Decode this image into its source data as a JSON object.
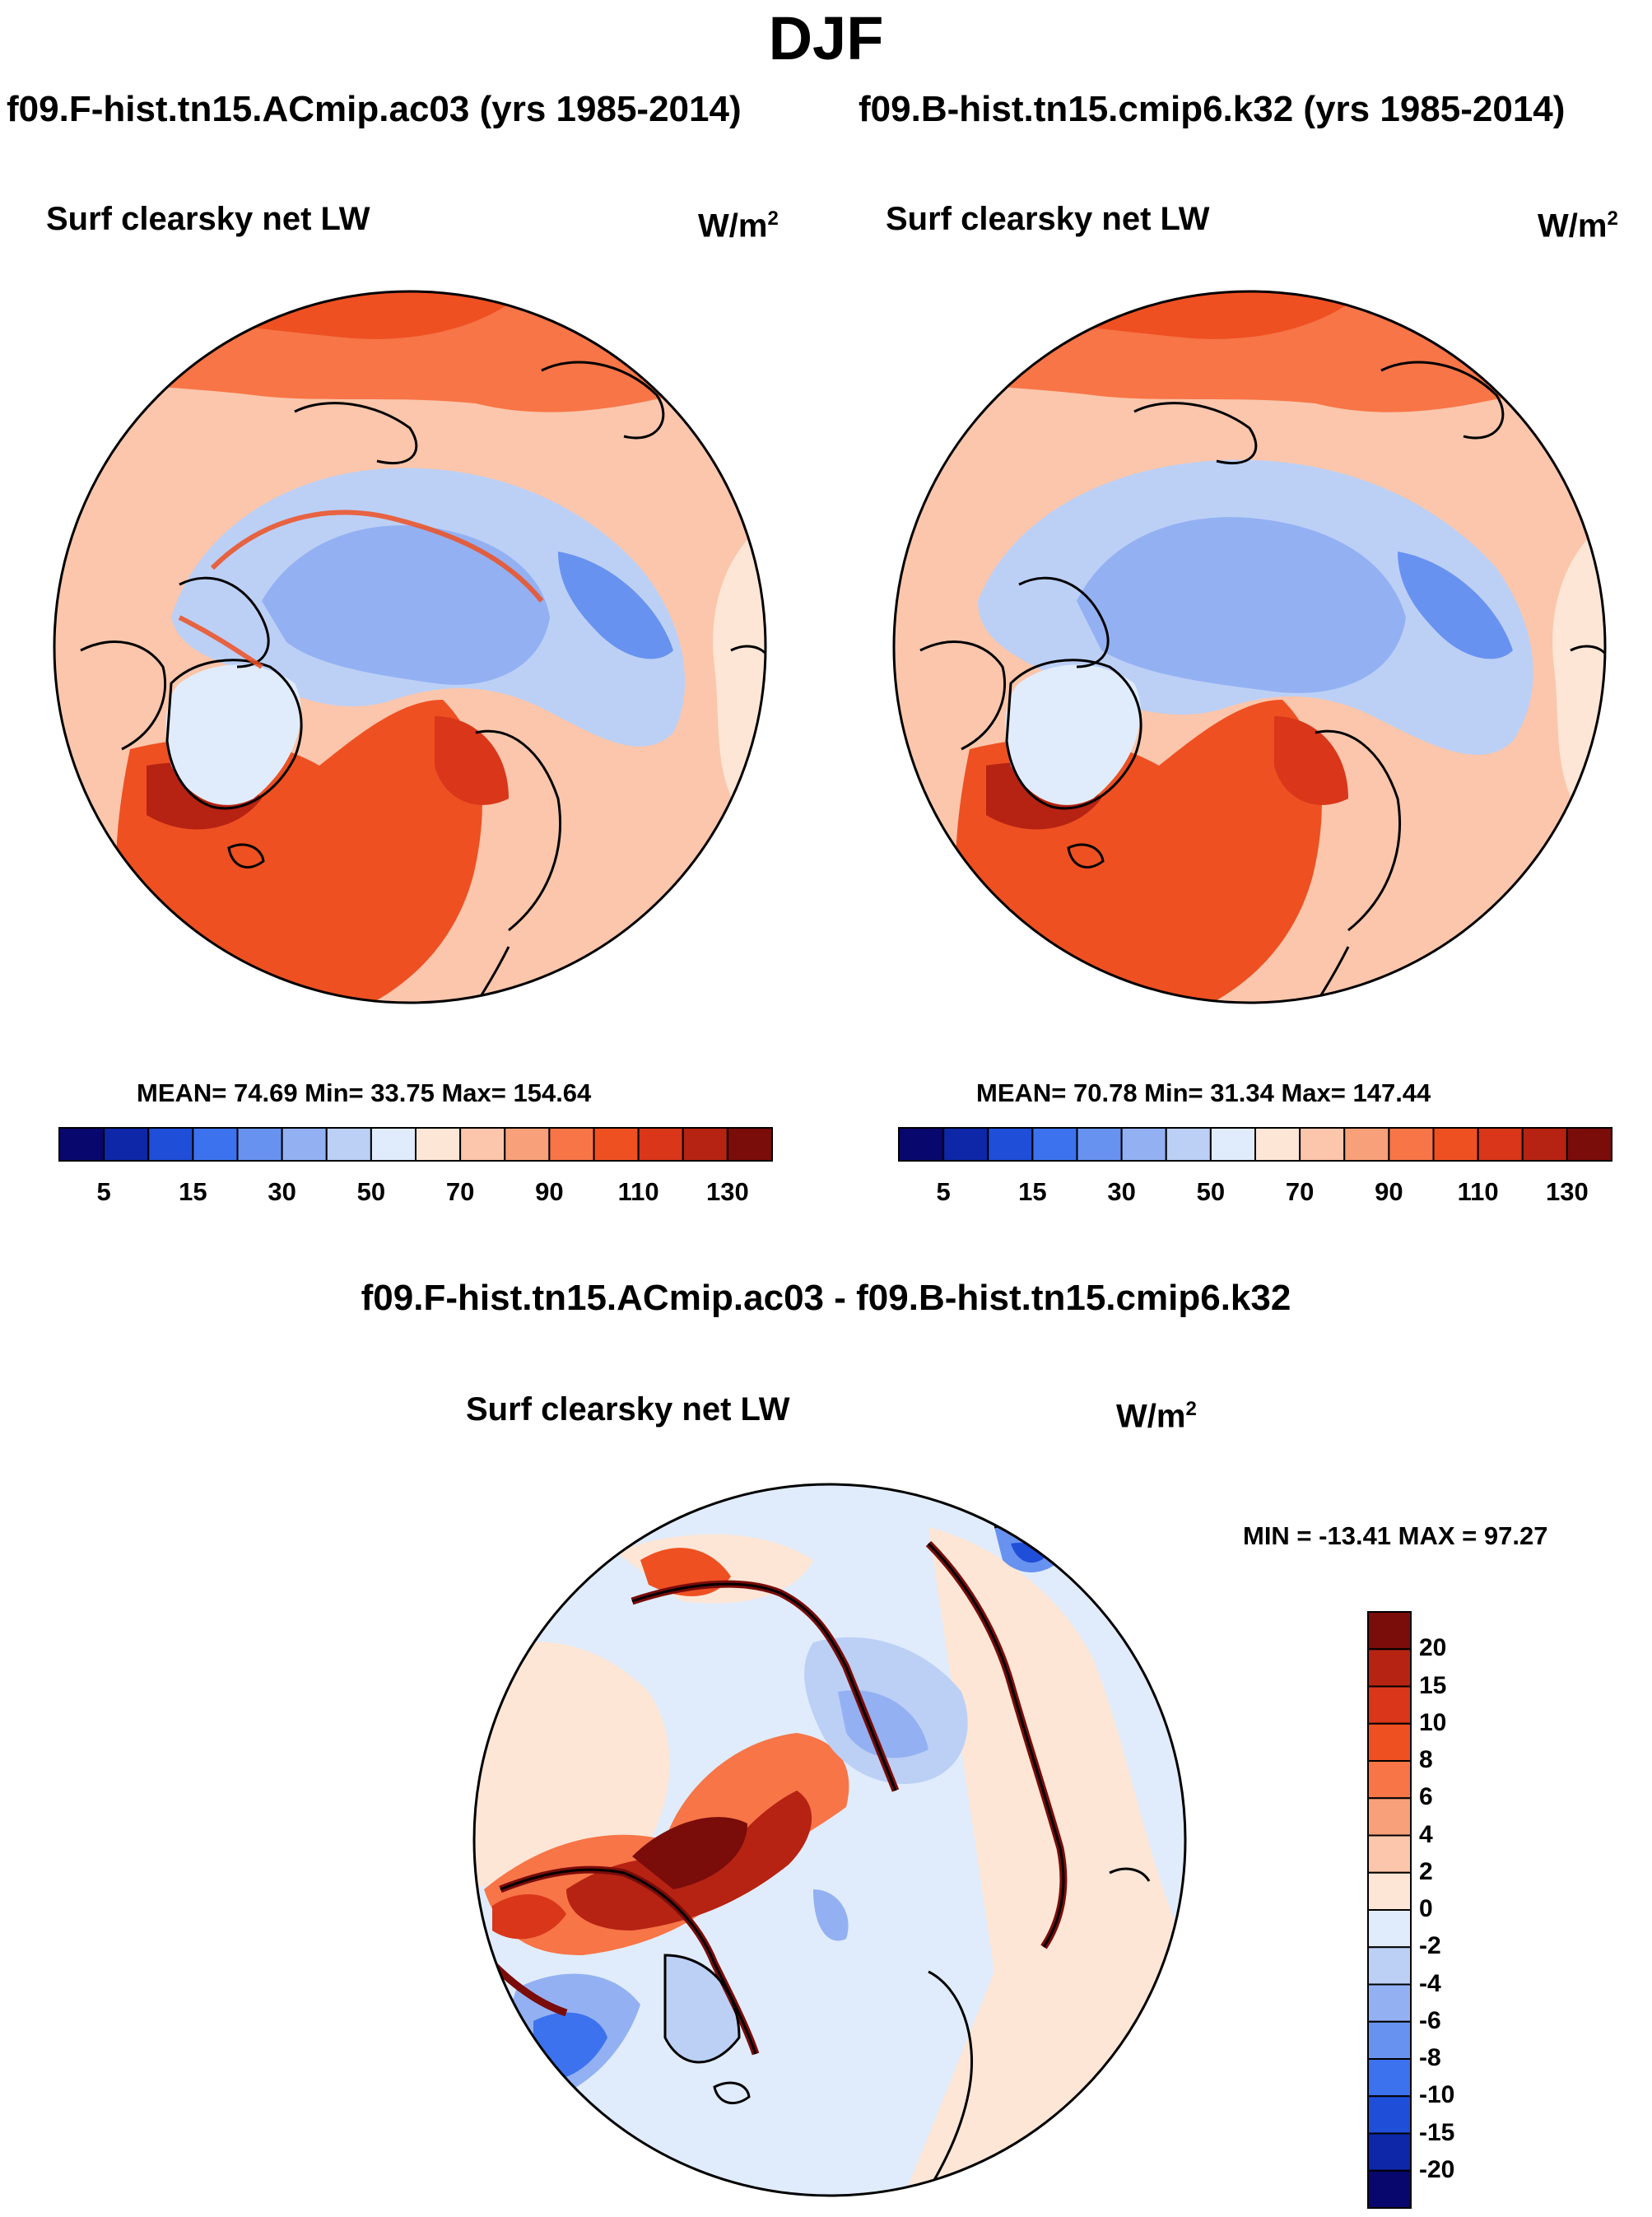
{
  "title": "DJF",
  "panels": [
    {
      "case": "f09.F-hist.tn15.ACmip.ac03 (yrs 1985-2014)",
      "variable": "Surf clearsky net LW",
      "units": "W/m",
      "units_exp": "2",
      "stats": "MEAN=  74.69  Min=  33.75  Max= 154.64"
    },
    {
      "case": "f09.B-hist.tn15.cmip6.k32 (yrs 1985-2014)",
      "variable": "Surf clearsky net LW",
      "units": "W/m",
      "units_exp": "2",
      "stats": "MEAN=  70.78  Min=  31.34  Max= 147.44"
    }
  ],
  "diff": {
    "title": "f09.F-hist.tn15.ACmip.ac03 - f09.B-hist.tn15.cmip6.k32",
    "variable": "Surf clearsky net LW",
    "units": "W/m",
    "units_exp": "2",
    "stats": "MIN = -13.41 MAX =  97.27"
  },
  "colorbar_top": {
    "labels": [
      "5",
      "15",
      "30",
      "50",
      "70",
      "90",
      "110",
      "130"
    ],
    "colors": [
      "#08076e",
      "#0d27a8",
      "#1f4ed8",
      "#3c72ee",
      "#6892ef",
      "#93b1f2",
      "#bcd0f6",
      "#e0ecfb",
      "#fde6d6",
      "#fbc6ab",
      "#f8a07a",
      "#f77547",
      "#ee5022",
      "#d9361a",
      "#b62313",
      "#7a0c0a"
    ]
  },
  "colorbar_diff": {
    "labels": [
      "20",
      "15",
      "10",
      "8",
      "6",
      "4",
      "2",
      "0",
      "-2",
      "-4",
      "-6",
      "-8",
      "-10",
      "-15",
      "-20"
    ],
    "colors": [
      "#7a0c0a",
      "#b62313",
      "#d9361a",
      "#ee5022",
      "#f77547",
      "#f8a07a",
      "#fbc6ab",
      "#fde6d6",
      "#e0ecfb",
      "#bcd0f6",
      "#93b1f2",
      "#6892ef",
      "#3c72ee",
      "#1f4ed8",
      "#0d27a8",
      "#08076e"
    ]
  }
}
